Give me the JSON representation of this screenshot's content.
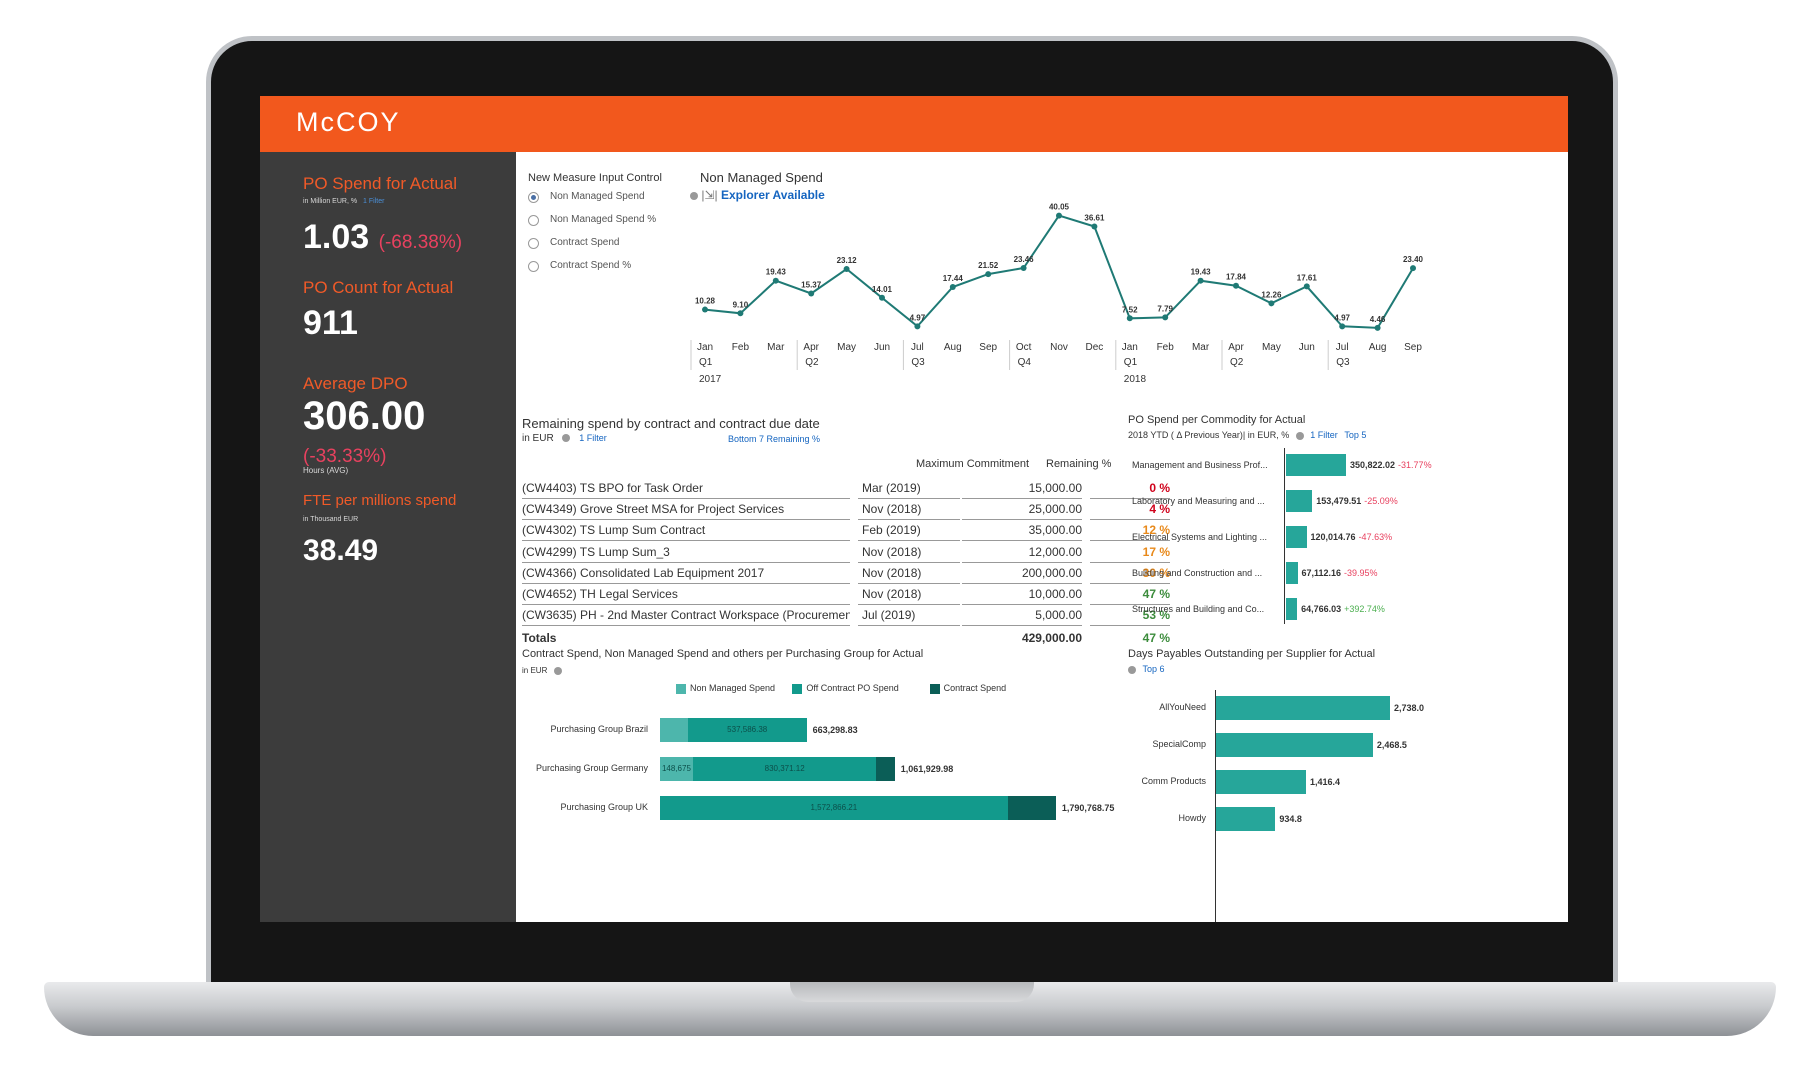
{
  "app": {
    "logo": "McCOY"
  },
  "kpis": [
    {
      "title": "PO Spend for Actual",
      "sub": "in Million EUR, %",
      "filter": "1 Filter",
      "value": "1.03",
      "delta": "(-68.38%)"
    },
    {
      "title": "PO Count for Actual",
      "value": "911"
    },
    {
      "title": "Average DPO",
      "value": "306.00",
      "delta": "(-33.33%)",
      "sub": "Hours (AVG)"
    },
    {
      "title": "FTE per millions spend",
      "sub": "in Thousand EUR",
      "value": "38.49"
    }
  ],
  "measure_control": {
    "title": "New Measure Input Control",
    "options": [
      "Non Managed Spend",
      "Non Managed Spend %",
      "Contract Spend",
      "Contract Spend %"
    ],
    "selected": "Non Managed Spend"
  },
  "line_chart_header": {
    "title": "Non Managed Spend",
    "explorer": "Explorer Available"
  },
  "contracts": {
    "title": "Remaining spend by contract and contract due date",
    "sub": "in EUR",
    "filter": "1 Filter",
    "bottom_note": "Bottom 7 Remaining %",
    "col_max": "Maximum Commitment",
    "col_rem": "Remaining %",
    "rows": [
      {
        "name": "(CW4403) TS BPO for Task Order",
        "date": "Mar (2019)",
        "max": "15,000.00",
        "rem": "0 %",
        "color": "#d0021b"
      },
      {
        "name": "(CW4349) Grove Street MSA for Project Services",
        "date": "Nov (2018)",
        "max": "25,000.00",
        "rem": "4 %",
        "color": "#d0021b"
      },
      {
        "name": "(CW4302) TS Lump Sum Contract",
        "date": "Feb (2019)",
        "max": "35,000.00",
        "rem": "12 %",
        "color": "#e8891a"
      },
      {
        "name": "(CW4299) TS Lump Sum_3",
        "date": "Nov (2018)",
        "max": "12,000.00",
        "rem": "17 %",
        "color": "#e8891a"
      },
      {
        "name": "(CW4366) Consolidated Lab Equipment 2017",
        "date": "Nov (2018)",
        "max": "200,000.00",
        "rem": "30 %",
        "color": "#e8891a"
      },
      {
        "name": "(CW4652) TH Legal Services",
        "date": "Nov (2018)",
        "max": "10,000.00",
        "rem": "47 %",
        "color": "#3c8c3c"
      },
      {
        "name": "(CW3635) PH - 2nd Master Contract Workspace (Procurement)",
        "date": "Jul (2019)",
        "max": "5,000.00",
        "rem": "53 %",
        "color": "#3c8c3c"
      }
    ],
    "totals": {
      "label": "Totals",
      "max": "429,000.00",
      "rem": "47 %"
    }
  },
  "commodity_header": {
    "title": "PO Spend per Commodity for Actual",
    "sub": "2018 YTD ( Δ Previous Year)| in EUR, %",
    "filter": "1 Filter",
    "top": "Top 5"
  },
  "purchasing_header": {
    "title": "Contract Spend, Non Managed Spend and others per Purchasing Group for Actual",
    "sub": "in EUR"
  },
  "dpo_header": {
    "title": "Days Payables Outstanding per Supplier for Actual",
    "top": "Top 6"
  },
  "chart_data": [
    {
      "type": "line",
      "title": "Non Managed Spend",
      "categories": [
        "Jan",
        "Feb",
        "Mar",
        "Apr",
        "May",
        "Jun",
        "Jul",
        "Aug",
        "Sep",
        "Oct",
        "Nov",
        "Dec",
        "Jan",
        "Feb",
        "Mar",
        "Apr",
        "May",
        "Jun",
        "Jul",
        "Aug",
        "Sep"
      ],
      "quarters": [
        {
          "label": "Q1",
          "index": 0
        },
        {
          "label": "Q2",
          "index": 3
        },
        {
          "label": "Q3",
          "index": 6
        },
        {
          "label": "Q4",
          "index": 9
        },
        {
          "label": "Q1",
          "index": 12
        },
        {
          "label": "Q2",
          "index": 15
        },
        {
          "label": "Q3",
          "index": 18
        }
      ],
      "years": [
        {
          "label": "2017",
          "index": 0
        },
        {
          "label": "2018",
          "index": 12
        }
      ],
      "values": [
        10.28,
        9.1,
        19.43,
        15.37,
        23.12,
        14.01,
        4.97,
        17.44,
        21.52,
        23.46,
        40.05,
        36.61,
        7.52,
        7.79,
        19.43,
        17.84,
        12.26,
        17.61,
        4.97,
        4.46,
        23.4
      ],
      "labels": [
        "10.28",
        "9.10",
        "19.43",
        "15.37",
        "23.12",
        "14.01",
        "4.97",
        "17.44",
        "21.52",
        "23.46",
        "40.05",
        "36.61",
        "7.52",
        "7.79",
        "19.43",
        "17.84",
        "12.26",
        "17.61",
        "4.97",
        "4.46",
        "23.40"
      ],
      "ylim": [
        0,
        45
      ],
      "color": "#1f7a75"
    },
    {
      "type": "bar",
      "orientation": "horizontal",
      "title": "PO Spend per Commodity for Actual",
      "categories": [
        "Management and Business Prof...",
        "Laboratory and Measuring and ...",
        "Electrical Systems and Lighting ...",
        "Building and Construction and ...",
        "Structures and Building and Co..."
      ],
      "values": [
        350822.02,
        153479.51,
        120014.76,
        67112.16,
        64766.03
      ],
      "value_labels": [
        "350,822.02",
        "153,479.51",
        "120,014.76",
        "67,112.16",
        "64,766.03"
      ],
      "deltas": [
        "-31.77%",
        "-25.09%",
        "-47.63%",
        "-39.95%",
        "+392.74%"
      ],
      "delta_colors": [
        "#e8415f",
        "#e8415f",
        "#e8415f",
        "#e8415f",
        "#4caf50"
      ],
      "color": "#26a69a"
    },
    {
      "type": "bar",
      "orientation": "horizontal",
      "stacked": true,
      "title": "Contract Spend, Non Managed Spend and others per Purchasing Group for Actual",
      "categories": [
        "Purchasing Group Brazil",
        "Purchasing Group Germany",
        "Purchasing Group UK"
      ],
      "series": [
        {
          "name": "Non Managed Spend",
          "color": "#4db6ac",
          "values": [
            125712.45,
            148675,
            0
          ]
        },
        {
          "name": "Off Contract PO Spend",
          "color": "#129a8c",
          "values": [
            537586.38,
            830371.12,
            1572866.21
          ]
        },
        {
          "name": "Contract Spend",
          "color": "#0b5e57",
          "values": [
            0,
            82883.86,
            217902.54
          ]
        }
      ],
      "segment_labels": [
        [
          "",
          "537,586.38",
          ""
        ],
        [
          "148,675",
          "830,371.12",
          ""
        ],
        [
          "",
          "1,572,866.21",
          ""
        ]
      ],
      "totals": [
        "663,298.83",
        "1,061,929.98",
        "1,790,768.75"
      ],
      "xlim": [
        0,
        1900000
      ]
    },
    {
      "type": "bar",
      "orientation": "horizontal",
      "title": "Days Payables Outstanding per Supplier for Actual",
      "categories": [
        "AllYouNeed",
        "SpecialComp",
        "Comm Products",
        "Howdy"
      ],
      "values": [
        2738.0,
        2468.5,
        1416.4,
        934.8
      ],
      "value_labels": [
        "2,738.0",
        "2,468.5",
        "1,416.4",
        "934.8"
      ],
      "color": "#26a69a"
    }
  ]
}
